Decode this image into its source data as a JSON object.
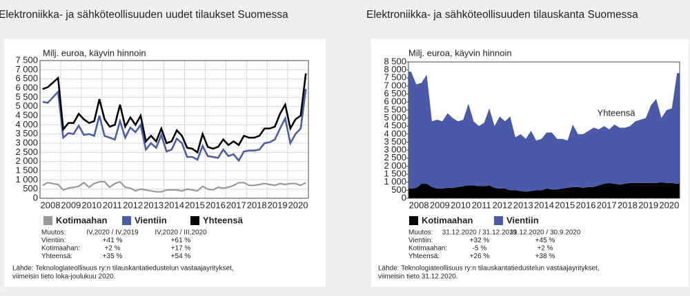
{
  "chart_data": [
    {
      "type": "line",
      "title": "Elektroniikka- ja sähköteollisuuden uudet tilaukset Suomessa",
      "y_label": "Milj. euroa, käyvin hinnoin",
      "categories": [
        "2008",
        null,
        null,
        null,
        "2009",
        null,
        null,
        null,
        "2010",
        null,
        null,
        null,
        "2011",
        null,
        null,
        null,
        "2012",
        null,
        null,
        null,
        "2013",
        null,
        null,
        null,
        "2014",
        null,
        null,
        null,
        "2015",
        null,
        null,
        null,
        "2016",
        null,
        null,
        null,
        "2017",
        null,
        null,
        null,
        "2018",
        null,
        null,
        null,
        "2019",
        null,
        null,
        null,
        "2020",
        null,
        null,
        null
      ],
      "series": [
        {
          "name": "Kotimaahan",
          "color": "#999999",
          "values": [
            700,
            850,
            800,
            750,
            450,
            550,
            600,
            650,
            850,
            600,
            800,
            900,
            900,
            600,
            800,
            900,
            600,
            550,
            400,
            500,
            450,
            400,
            350,
            350,
            450,
            450,
            450,
            400,
            500,
            450,
            400,
            650,
            500,
            450,
            600,
            550,
            600,
            700,
            850,
            850,
            700,
            700,
            750,
            800,
            750,
            700,
            800,
            750,
            800,
            800,
            700,
            850
          ]
        },
        {
          "name": "Vientiin",
          "color": "#4b5ea6",
          "values": [
            5250,
            5200,
            5500,
            5800,
            3300,
            3550,
            3500,
            3950,
            3450,
            3500,
            3400,
            4500,
            3400,
            3300,
            3200,
            4200,
            3300,
            3850,
            3600,
            4000,
            2650,
            3000,
            2750,
            3450,
            2550,
            2650,
            3250,
            3000,
            2250,
            2250,
            2100,
            2850,
            2300,
            2250,
            2200,
            2650,
            2300,
            2400,
            2050,
            2550,
            2600,
            2600,
            2650,
            3000,
            3050,
            3200,
            3800,
            4350,
            3000,
            3500,
            3800,
            5950
          ]
        },
        {
          "name": "Yhteensä",
          "color": "#000000",
          "values": [
            5950,
            6050,
            6300,
            6550,
            3750,
            4100,
            4100,
            4600,
            4300,
            4100,
            4200,
            5400,
            4300,
            3900,
            4000,
            5100,
            3900,
            4400,
            4000,
            4500,
            3100,
            3400,
            3100,
            3800,
            3000,
            3100,
            3700,
            3400,
            2750,
            2700,
            2500,
            3500,
            2800,
            2700,
            2800,
            3200,
            2900,
            3100,
            2900,
            3400,
            3300,
            3300,
            3400,
            3800,
            3800,
            3900,
            4600,
            5100,
            3800,
            4300,
            4500,
            6800
          ]
        }
      ],
      "ylim": [
        0,
        7500
      ],
      "yticks": [
        0,
        500,
        {
          "value": 1000,
          "label": "1 000"
        },
        {
          "value": 1500,
          "label": "1 500"
        },
        {
          "value": 2000,
          "label": "2 000"
        },
        {
          "value": 2500,
          "label": "2 500"
        },
        {
          "value": 3000,
          "label": "3 000"
        },
        {
          "value": 3500,
          "label": "3 500"
        },
        {
          "value": 4000,
          "label": "4 000"
        },
        {
          "value": 4500,
          "label": "4 500"
        },
        {
          "value": 5000,
          "label": "5 000"
        },
        {
          "value": 5500,
          "label": "5 500"
        },
        {
          "value": 6000,
          "label": "6 000"
        },
        {
          "value": 6500,
          "label": "6 500"
        },
        {
          "value": 7000,
          "label": "7 000"
        },
        {
          "value": 7500,
          "label": "7 500"
        }
      ],
      "grid": true,
      "notes": {
        "header": [
          "Muutos:",
          "IV,2020 / IV,2019",
          "IV,2020 / III,2020"
        ],
        "rows": [
          [
            "Vientiin:",
            "+41 %",
            "+61 %"
          ],
          [
            "Kotimaahan:",
            "+2 %",
            "+17 %"
          ],
          [
            "Yhteensä:",
            "+35 %",
            "+54 %"
          ]
        ]
      },
      "source": [
        "Lähde: Teknologiateollisuus ry:n tilauskantatiedustelun vastaajayritykset,",
        "viimeisin tieto loka-joulukuu 2020."
      ]
    },
    {
      "type": "area",
      "stacked": true,
      "title": "Elektroniikka- ja sähköteollisuuden tilauskanta Suomessa",
      "y_label": "Milj. euroa, käyvin hinnoin",
      "annotation": "Yhteensä",
      "categories": [
        "2008",
        null,
        null,
        null,
        "2009",
        null,
        null,
        null,
        "2010",
        null,
        null,
        null,
        "2011",
        null,
        null,
        null,
        "2012",
        null,
        null,
        null,
        "2013",
        null,
        null,
        null,
        "2014",
        null,
        null,
        null,
        "2015",
        null,
        null,
        null,
        "2016",
        null,
        null,
        null,
        "2017",
        null,
        null,
        null,
        "2018",
        null,
        null,
        null,
        "2019",
        null,
        null,
        null,
        "2020",
        null,
        null,
        null
      ],
      "series": [
        {
          "name": "Kotimaahan",
          "color": "#000000",
          "values": [
            600,
            650,
            900,
            900,
            700,
            600,
            600,
            650,
            650,
            700,
            750,
            800,
            800,
            750,
            750,
            800,
            650,
            600,
            600,
            500,
            500,
            450,
            400,
            450,
            500,
            500,
            600,
            550,
            550,
            600,
            650,
            700,
            700,
            650,
            700,
            700,
            800,
            900,
            950,
            900,
            850,
            900,
            950,
            950,
            950,
            950,
            950,
            950,
            1000,
            950,
            950,
            900
          ]
        },
        {
          "name": "Vientiin",
          "color": "#4a5aa8",
          "values": [
            7300,
            6450,
            6300,
            6800,
            4100,
            4300,
            4200,
            4650,
            4350,
            4100,
            4150,
            5100,
            4000,
            3750,
            3950,
            4800,
            3850,
            4500,
            4200,
            4600,
            3300,
            3550,
            3300,
            3750,
            3100,
            3200,
            3500,
            3550,
            3150,
            3100,
            2950,
            3900,
            3300,
            3350,
            3500,
            3700,
            3500,
            3600,
            3350,
            3700,
            3550,
            3500,
            3550,
            3850,
            3950,
            4050,
            4850,
            5250,
            4000,
            4550,
            4650,
            6900
          ]
        }
      ],
      "ylim": [
        0,
        8500
      ],
      "yticks": [
        0,
        500,
        {
          "value": 1000,
          "label": "1 000"
        },
        {
          "value": 1500,
          "label": "1 500"
        },
        {
          "value": 2000,
          "label": "2 000"
        },
        {
          "value": 2500,
          "label": "2 500"
        },
        {
          "value": 3000,
          "label": "3 000"
        },
        {
          "value": 3500,
          "label": "3 500"
        },
        {
          "value": 4000,
          "label": "4 000"
        },
        {
          "value": 4500,
          "label": "4 500"
        },
        {
          "value": 5000,
          "label": "5 000"
        },
        {
          "value": 5500,
          "label": "5 500"
        },
        {
          "value": 6000,
          "label": "6 000"
        },
        {
          "value": 6500,
          "label": "6 500"
        },
        {
          "value": 7000,
          "label": "7 000"
        },
        {
          "value": 7500,
          "label": "7 500"
        },
        {
          "value": 8000,
          "label": "8 000"
        },
        {
          "value": 8500,
          "label": "8 500"
        }
      ],
      "grid": false,
      "notes": {
        "header": [
          "Muutos:",
          "31.12.2020 / 31.12.2019",
          "31.12.2020 / 30.9.2020"
        ],
        "rows": [
          [
            "Vientiin:",
            "+32 %",
            "+45 %"
          ],
          [
            "Kotimaahan:",
            "-5 %",
            "+2 %"
          ],
          [
            "Yhteensä:",
            "+26 %",
            "+38 %"
          ]
        ]
      },
      "source": [
        "Lähde: Teknologiateollisuus ry:n tilauskantatiedustelun vastaajayritykset,",
        "viimeisin tieto 31.12.2020."
      ]
    }
  ]
}
